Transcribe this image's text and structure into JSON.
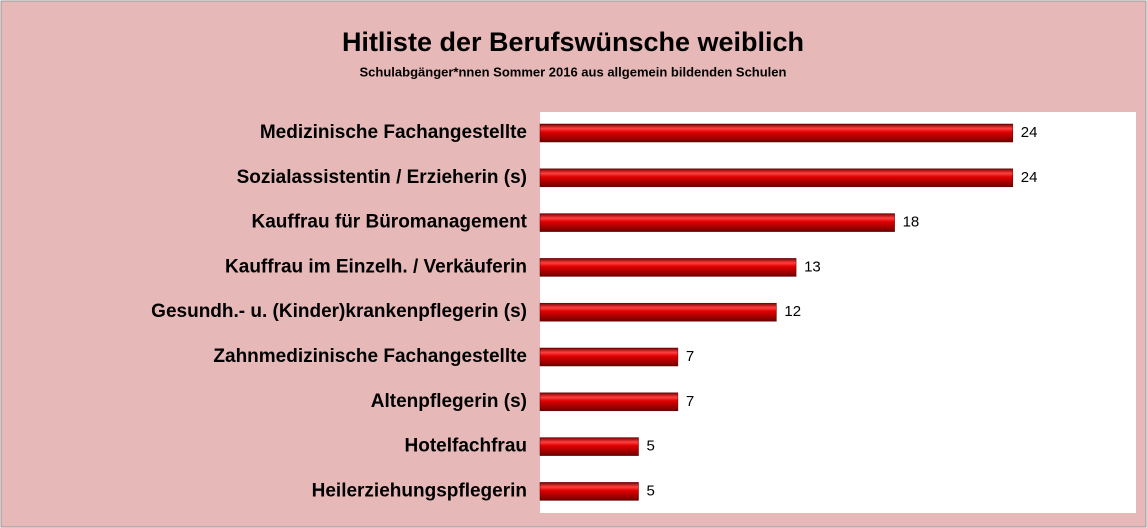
{
  "chart_data": {
    "type": "bar",
    "orientation": "horizontal",
    "title": "Hitliste der Berufswünsche weiblich",
    "subtitle": "Schulabgänger*nnen Sommer 2016 aus allgemein bildenden Schulen",
    "categories": [
      "Medizinische Fachangestellte",
      "Sozialassistentin / Erzieherin (s)",
      "Kauffrau für Büromanagement",
      "Kauffrau im Einzelh. / Verkäuferin",
      "Gesundh.- u. (Kinder)krankenpflegerin (s)",
      "Zahnmedizinische Fachangestellte",
      "Altenpflegerin (s)",
      "Hotelfachfrau",
      "Heilerziehungspflegerin"
    ],
    "values": [
      24,
      24,
      18,
      13,
      12,
      7,
      7,
      5,
      5
    ],
    "color": "#c00000"
  }
}
